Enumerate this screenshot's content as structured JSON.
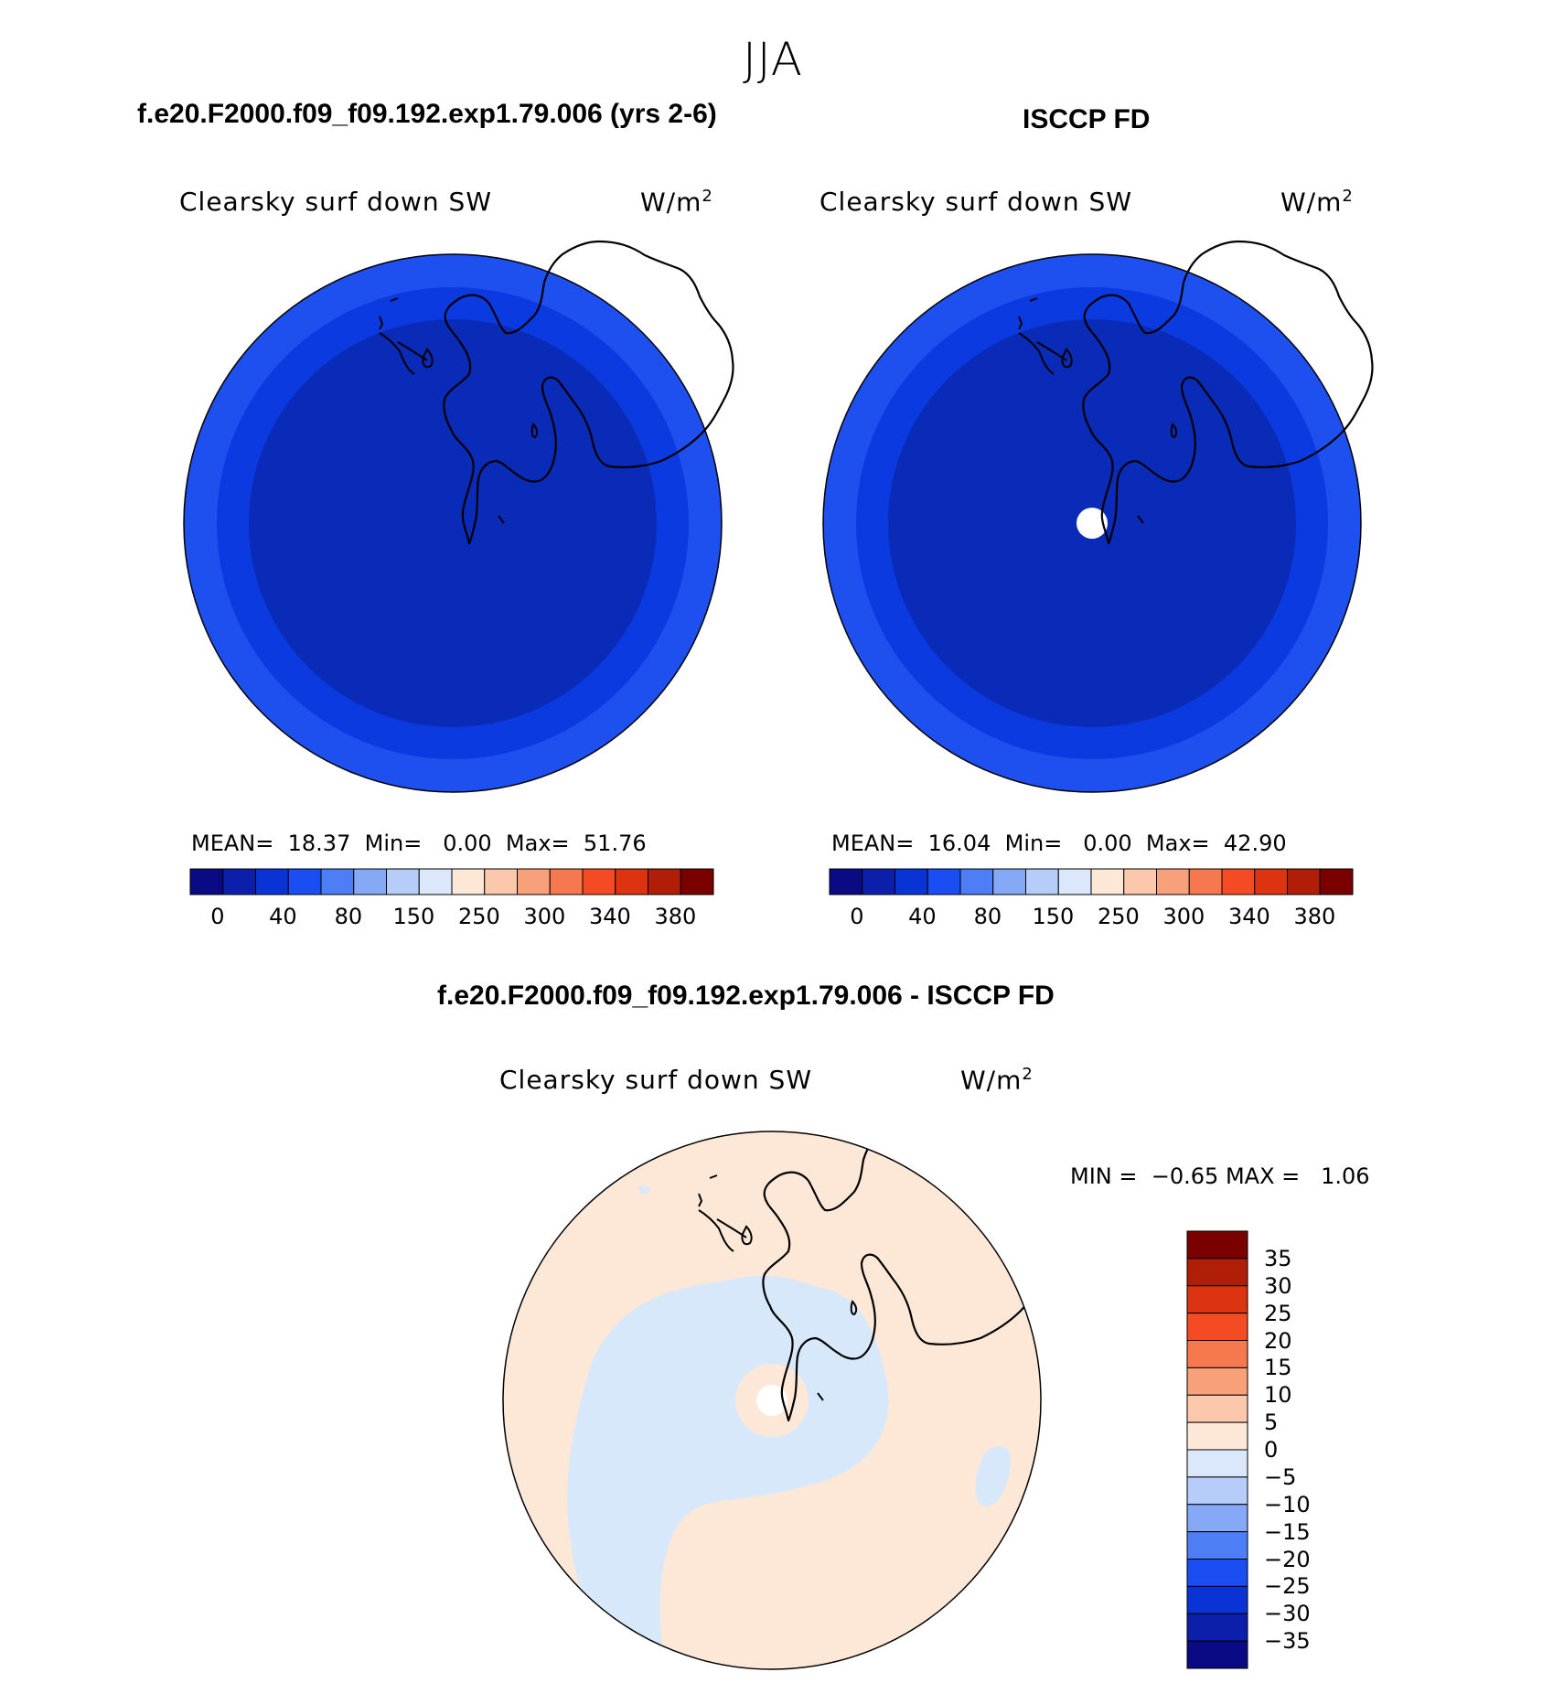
{
  "season": "JJA",
  "panels": [
    {
      "title": "f.e20.F2000.f09_f09.192.exp1.79.006 (yrs 2-6)",
      "variable": "Clearsky surf down SW",
      "units": "W/m",
      "units_sup": "2",
      "stats": {
        "mean_label": "MEAN=",
        "mean": "18.37",
        "min_label": "Min=",
        "min": "0.00",
        "max_label": "Max=",
        "max": "51.76"
      }
    },
    {
      "title": "ISCCP FD",
      "variable": "Clearsky surf down SW",
      "units": "W/m",
      "units_sup": "2",
      "stats": {
        "mean_label": "MEAN=",
        "mean": "16.04",
        "min_label": "Min=",
        "min": "0.00",
        "max_label": "Max=",
        "max": "42.90"
      }
    },
    {
      "title": "f.e20.F2000.f09_f09.192.exp1.79.006 - ISCCP FD",
      "variable": "Clearsky surf down SW",
      "units": "W/m",
      "units_sup": "2",
      "stats": {
        "min_label": "MIN =",
        "min": "−0.65",
        "max_label": "MAX =",
        "max": "1.06"
      }
    }
  ],
  "abs_colorbar": {
    "colors": [
      "#0a0a85",
      "#0b1faa",
      "#0a33d6",
      "#1a4ef2",
      "#4d7ef5",
      "#85a8f7",
      "#b6ccf9",
      "#dbe8fb",
      "#fde8d8",
      "#fbc8ac",
      "#f8a07a",
      "#f6784e",
      "#f44b24",
      "#dc3310",
      "#b01e08",
      "#7a0000"
    ],
    "tick_labels": [
      "0",
      "40",
      "80",
      "150",
      "250",
      "300",
      "340",
      "380"
    ]
  },
  "diff_colorbar": {
    "colors": [
      "#0a0a85",
      "#0b1faa",
      "#0a33d6",
      "#1a4ef2",
      "#4d7ef5",
      "#85a8f7",
      "#b6ccf9",
      "#dbe8fb",
      "#fde8d8",
      "#fbc8ac",
      "#f8a07a",
      "#f6784e",
      "#f44b24",
      "#dc3310",
      "#b01e08",
      "#7a0000"
    ],
    "tick_labels": [
      "35",
      "30",
      "25",
      "20",
      "15",
      "10",
      "5",
      "0",
      "−5",
      "−10",
      "−15",
      "−20",
      "−25",
      "−30",
      "−35"
    ]
  },
  "map_colors": {
    "outer_ring": "#1e50f0",
    "inner_field": "#0a2bb8",
    "diff_positive": "#fde8d8",
    "diff_negative": "#d6e8fa"
  }
}
